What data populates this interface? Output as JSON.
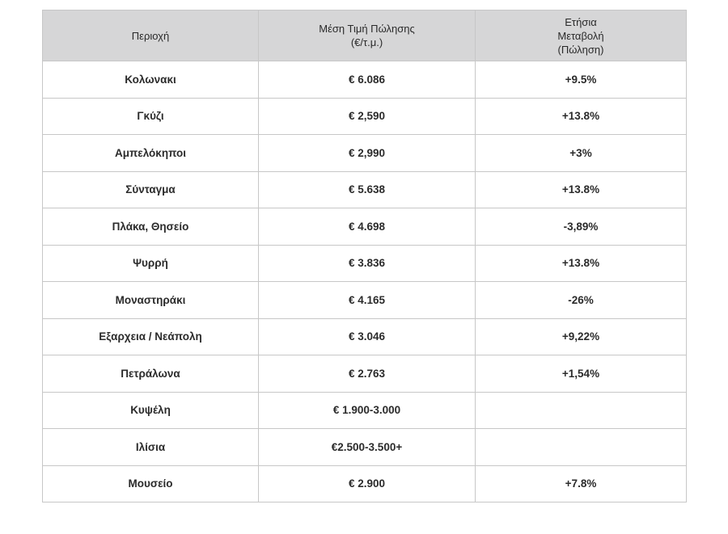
{
  "table": {
    "headers": {
      "region": "Περιοχή",
      "price_line1": "Μέση Τιμή Πώλησης",
      "price_line2": "(€/τ.μ.)",
      "change_line1": "Ετήσια",
      "change_line2": "Μεταβολή",
      "change_line3": "(Πώληση)"
    },
    "rows": [
      {
        "region": "Κολωνακι",
        "price": "€ 6.086",
        "change": "+9.5%"
      },
      {
        "region": "Γκύζι",
        "price": "€ 2,590",
        "change": "+13.8%"
      },
      {
        "region": "Αμπελόκηποι",
        "price": "€ 2,990",
        "change": "+3%"
      },
      {
        "region": "Σύνταγμα",
        "price": "€ 5.638",
        "change": "+13.8%"
      },
      {
        "region": "Πλάκα, Θησείο",
        "price": "€ 4.698",
        "change": "-3,89%"
      },
      {
        "region": "Ψυρρή",
        "price": "€ 3.836",
        "change": "+13.8%"
      },
      {
        "region": "Μοναστηράκι",
        "price": "€ 4.165",
        "change": "-26%"
      },
      {
        "region": "Εξαρχεια / Νεάπολη",
        "price": "€ 3.046",
        "change": "+9,22%"
      },
      {
        "region": "Πετράλωνα",
        "price": "€ 2.763",
        "change": "+1,54%"
      },
      {
        "region": "Κυψέλη",
        "price": "€ 1.900-3.000",
        "change": ""
      },
      {
        "region": "Ιλίσια",
        "price": "€2.500-3.500+",
        "change": ""
      },
      {
        "region": "Μουσείο",
        "price": "€ 2.900",
        "change": "+7.8%"
      }
    ]
  }
}
